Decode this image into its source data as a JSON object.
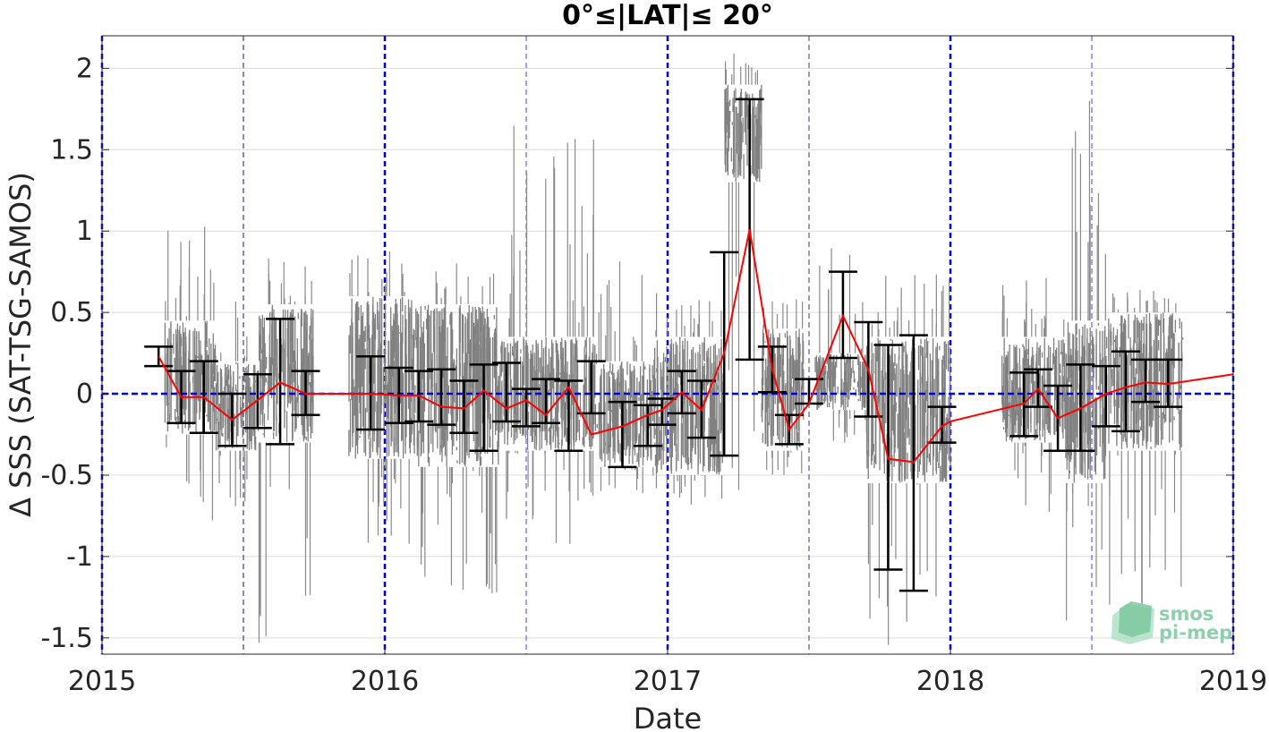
{
  "chart_data": {
    "type": "scatter",
    "title": "0°≤|LAT|≤ 20°",
    "xlabel": "Date",
    "ylabel": "Δ SSS (SAT-TSG-SAMOS)",
    "xlim": [
      2015,
      2019
    ],
    "ylim": [
      -1.6,
      2.2
    ],
    "xticks": [
      2015,
      2016,
      2017,
      2018,
      2019
    ],
    "xtick_labels": [
      "2015",
      "2016",
      "2017",
      "2018",
      "2019"
    ],
    "yticks": [
      -1.5,
      -1,
      -0.5,
      0,
      0.5,
      1,
      1.5,
      2
    ],
    "ytick_labels": [
      "-1.5",
      "-1",
      "-0.5",
      "0",
      "0.5",
      "1",
      "1.5",
      "2"
    ],
    "grid": true,
    "zero_line": 0,
    "year_markers": [
      2015,
      2016,
      2017,
      2018,
      2019
    ],
    "half_year_markers": [
      2015.5,
      2016.5,
      2017.5,
      2018.5
    ],
    "scatter_clusters": [
      {
        "x0": 2015.22,
        "x1": 2015.4,
        "y_low": -0.25,
        "y_high": 0.45,
        "spike_low": -0.9,
        "spike_high": 1.05
      },
      {
        "x0": 2015.4,
        "x1": 2015.55,
        "y_low": -0.35,
        "y_high": 0.2,
        "spike_low": -0.7,
        "spike_high": 0.7
      },
      {
        "x0": 2015.55,
        "x1": 2015.75,
        "y_low": -0.3,
        "y_high": 0.55,
        "spike_low": -1.55,
        "spike_high": 0.85
      },
      {
        "x0": 2015.87,
        "x1": 2016.1,
        "y_low": -0.4,
        "y_high": 0.6,
        "spike_low": -1.05,
        "spike_high": 0.9
      },
      {
        "x0": 2016.1,
        "x1": 2016.4,
        "y_low": -0.45,
        "y_high": 0.55,
        "spike_low": -1.25,
        "spike_high": 0.85
      },
      {
        "x0": 2016.4,
        "x1": 2016.75,
        "y_low": -0.35,
        "y_high": 0.35,
        "spike_low": -0.95,
        "spike_high": 1.65
      },
      {
        "x0": 2016.75,
        "x1": 2016.95,
        "y_low": -0.45,
        "y_high": 0.2,
        "spike_low": -0.65,
        "spike_high": 0.9
      },
      {
        "x0": 2016.95,
        "x1": 2017.2,
        "y_low": -0.5,
        "y_high": 0.35,
        "spike_low": -0.7,
        "spike_high": 0.65
      },
      {
        "x0": 2017.2,
        "x1": 2017.33,
        "y_low": 1.3,
        "y_high": 1.9,
        "spike_low": -0.85,
        "spike_high": 2.1
      },
      {
        "x0": 2017.33,
        "x1": 2017.48,
        "y_low": -0.35,
        "y_high": 0.4,
        "spike_low": -0.5,
        "spike_high": 0.6
      },
      {
        "x0": 2017.52,
        "x1": 2017.7,
        "y_low": -0.1,
        "y_high": 0.25,
        "spike_low": -0.3,
        "spike_high": 0.9
      },
      {
        "x0": 2017.7,
        "x1": 2018.0,
        "y_low": -0.55,
        "y_high": 0.35,
        "spike_low": -1.6,
        "spike_high": 0.75
      },
      {
        "x0": 2018.18,
        "x1": 2018.4,
        "y_low": -0.3,
        "y_high": 0.35,
        "spike_low": -0.8,
        "spike_high": 0.75
      },
      {
        "x0": 2018.4,
        "x1": 2018.55,
        "y_low": -0.55,
        "y_high": 0.45,
        "spike_low": -1.45,
        "spike_high": 1.8
      },
      {
        "x0": 2018.55,
        "x1": 2018.82,
        "y_low": -0.35,
        "y_high": 0.5,
        "spike_low": -1.3,
        "spike_high": 0.65
      }
    ],
    "series": [
      {
        "color": "#ff0000",
        "x": [
          2015.2,
          2015.28,
          2015.36,
          2015.46,
          2015.55,
          2015.63,
          2015.72,
          2015.95,
          2016.05,
          2016.12,
          2016.2,
          2016.28,
          2016.35,
          2016.43,
          2016.5,
          2016.57,
          2016.65,
          2016.73,
          2016.84,
          2016.93,
          2016.98,
          2017.05,
          2017.12,
          2017.2,
          2017.29,
          2017.37,
          2017.43,
          2017.5,
          2017.62,
          2017.71,
          2017.78,
          2017.87,
          2017.97,
          2018.0,
          2018.26,
          2018.31,
          2018.38,
          2018.46,
          2018.55,
          2018.62,
          2018.69,
          2018.77,
          2019.0
        ],
        "y": [
          0.23,
          -0.02,
          -0.02,
          -0.16,
          -0.04,
          0.07,
          0.0,
          0.0,
          -0.01,
          -0.01,
          -0.08,
          -0.09,
          0.02,
          -0.09,
          -0.04,
          -0.13,
          0.04,
          -0.25,
          -0.2,
          -0.13,
          -0.1,
          0.01,
          -0.1,
          0.25,
          1.01,
          0.15,
          -0.22,
          -0.06,
          0.48,
          0.15,
          -0.4,
          -0.42,
          -0.2,
          -0.17,
          -0.06,
          0.03,
          -0.15,
          -0.09,
          0.0,
          0.04,
          0.07,
          0.06,
          0.12
        ]
      }
    ],
    "error_bars": [
      {
        "x": 2015.2,
        "y": 0.23,
        "low": 0.17,
        "high": 0.29
      },
      {
        "x": 2015.28,
        "y": -0.02,
        "low": -0.18,
        "high": 0.14
      },
      {
        "x": 2015.36,
        "y": -0.02,
        "low": -0.24,
        "high": 0.2
      },
      {
        "x": 2015.46,
        "y": -0.16,
        "low": -0.32,
        "high": 0.0
      },
      {
        "x": 2015.55,
        "y": -0.04,
        "low": -0.21,
        "high": 0.12
      },
      {
        "x": 2015.63,
        "y": 0.07,
        "low": -0.31,
        "high": 0.46
      },
      {
        "x": 2015.72,
        "y": 0.0,
        "low": -0.13,
        "high": 0.14
      },
      {
        "x": 2015.95,
        "y": 0.0,
        "low": -0.22,
        "high": 0.23
      },
      {
        "x": 2016.05,
        "y": -0.01,
        "low": -0.18,
        "high": 0.16
      },
      {
        "x": 2016.12,
        "y": -0.01,
        "low": -0.17,
        "high": 0.14
      },
      {
        "x": 2016.2,
        "y": -0.08,
        "low": -0.19,
        "high": 0.15
      },
      {
        "x": 2016.28,
        "y": -0.09,
        "low": -0.24,
        "high": 0.08
      },
      {
        "x": 2016.35,
        "y": 0.02,
        "low": -0.35,
        "high": 0.18
      },
      {
        "x": 2016.43,
        "y": -0.09,
        "low": -0.17,
        "high": 0.19
      },
      {
        "x": 2016.5,
        "y": -0.04,
        "low": -0.2,
        "high": 0.03
      },
      {
        "x": 2016.57,
        "y": -0.13,
        "low": -0.18,
        "high": 0.09
      },
      {
        "x": 2016.65,
        "y": 0.04,
        "low": -0.35,
        "high": 0.08
      },
      {
        "x": 2016.73,
        "y": -0.25,
        "low": -0.12,
        "high": 0.2
      },
      {
        "x": 2016.84,
        "y": -0.2,
        "low": -0.45,
        "high": -0.05
      },
      {
        "x": 2016.93,
        "y": -0.13,
        "low": -0.32,
        "high": -0.07
      },
      {
        "x": 2016.98,
        "y": -0.1,
        "low": -0.19,
        "high": -0.03
      },
      {
        "x": 2017.05,
        "y": 0.01,
        "low": -0.12,
        "high": 0.14
      },
      {
        "x": 2017.12,
        "y": -0.1,
        "low": -0.27,
        "high": 0.08
      },
      {
        "x": 2017.2,
        "y": 0.25,
        "low": -0.38,
        "high": 0.87
      },
      {
        "x": 2017.29,
        "y": 1.01,
        "low": 0.21,
        "high": 1.81
      },
      {
        "x": 2017.37,
        "y": 0.15,
        "low": 0.01,
        "high": 0.29
      },
      {
        "x": 2017.43,
        "y": -0.22,
        "low": -0.31,
        "high": -0.13
      },
      {
        "x": 2017.5,
        "y": -0.06,
        "low": -0.06,
        "high": 0.09
      },
      {
        "x": 2017.62,
        "y": 0.48,
        "low": 0.22,
        "high": 0.75
      },
      {
        "x": 2017.71,
        "y": 0.15,
        "low": -0.14,
        "high": 0.44
      },
      {
        "x": 2017.78,
        "y": -0.4,
        "low": -1.08,
        "high": 0.3
      },
      {
        "x": 2017.87,
        "y": -0.42,
        "low": -1.21,
        "high": 0.36
      },
      {
        "x": 2017.97,
        "y": -0.2,
        "low": -0.3,
        "high": -0.08
      },
      {
        "x": 2018.26,
        "y": -0.06,
        "low": -0.26,
        "high": 0.13
      },
      {
        "x": 2018.31,
        "y": 0.03,
        "low": -0.08,
        "high": 0.15
      },
      {
        "x": 2018.38,
        "y": -0.15,
        "low": -0.35,
        "high": 0.05
      },
      {
        "x": 2018.46,
        "y": -0.09,
        "low": -0.35,
        "high": 0.18
      },
      {
        "x": 2018.55,
        "y": 0.0,
        "low": -0.2,
        "high": 0.17
      },
      {
        "x": 2018.62,
        "y": 0.04,
        "low": -0.23,
        "high": 0.26
      },
      {
        "x": 2018.69,
        "y": 0.07,
        "low": -0.05,
        "high": 0.21
      },
      {
        "x": 2018.77,
        "y": 0.06,
        "low": -0.08,
        "high": 0.21
      }
    ]
  },
  "logo": {
    "line1": "smos",
    "line2": "pi-mep"
  }
}
